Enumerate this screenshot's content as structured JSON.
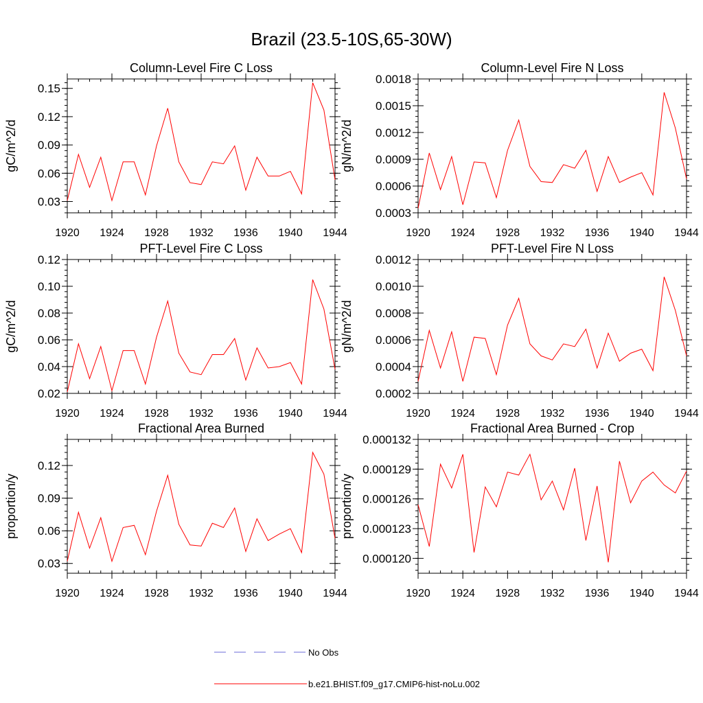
{
  "figure": {
    "title": "Brazil (23.5-10S,65-30W)",
    "legend": [
      {
        "label": "No Obs",
        "color": "#6a6ad8",
        "dash": true
      },
      {
        "label": "b.e21.BHIST.f09_g17.CMIP6-hist-noLu.002",
        "color": "#ff0000",
        "dash": false
      }
    ]
  },
  "chart_data": [
    {
      "type": "line",
      "title": "Column-Level Fire C Loss",
      "ylabel": "gC/m^2/d",
      "xlim": [
        1920,
        1944
      ],
      "ylim": [
        0.018,
        0.16
      ],
      "xticks": [
        1920,
        1924,
        1928,
        1932,
        1936,
        1940,
        1944
      ],
      "xtick_labels": [
        "1920",
        "1924",
        "1928",
        "1932",
        "1936",
        "1940",
        "1944"
      ],
      "yticks": [
        0.03,
        0.06,
        0.09,
        0.12,
        0.15
      ],
      "ytick_labels": [
        "0.03",
        "0.06",
        "0.09",
        "0.12",
        "0.15"
      ],
      "series": [
        {
          "color": "#ff0000",
          "x": [
            1920,
            1921,
            1922,
            1923,
            1924,
            1925,
            1926,
            1927,
            1928,
            1929,
            1930,
            1931,
            1932,
            1933,
            1934,
            1935,
            1936,
            1937,
            1938,
            1939,
            1940,
            1941,
            1942,
            1943,
            1944
          ],
          "values": [
            0.031,
            0.08,
            0.045,
            0.077,
            0.031,
            0.072,
            0.072,
            0.037,
            0.089,
            0.129,
            0.072,
            0.05,
            0.048,
            0.072,
            0.07,
            0.089,
            0.042,
            0.077,
            0.057,
            0.057,
            0.062,
            0.038,
            0.156,
            0.127,
            0.053
          ]
        }
      ]
    },
    {
      "type": "line",
      "title": "Column-Level Fire N Loss",
      "ylabel": "gN/m^2/d",
      "xlim": [
        1920,
        1944
      ],
      "ylim": [
        0.0003,
        0.0018
      ],
      "xticks": [
        1920,
        1924,
        1928,
        1932,
        1936,
        1940,
        1944
      ],
      "xtick_labels": [
        "1920",
        "1924",
        "1928",
        "1932",
        "1936",
        "1940",
        "1944"
      ],
      "yticks": [
        0.0003,
        0.0006,
        0.0009,
        0.0012,
        0.0015,
        0.0018
      ],
      "ytick_labels": [
        "0.0003",
        "0.0006",
        "0.0009",
        "0.0012",
        "0.0015",
        "0.0018"
      ],
      "series": [
        {
          "color": "#ff0000",
          "x": [
            1920,
            1921,
            1922,
            1923,
            1924,
            1925,
            1926,
            1927,
            1928,
            1929,
            1930,
            1931,
            1932,
            1933,
            1934,
            1935,
            1936,
            1937,
            1938,
            1939,
            1940,
            1941,
            1942,
            1943,
            1944
          ],
          "values": [
            0.00035,
            0.00097,
            0.00056,
            0.00093,
            0.00039,
            0.00087,
            0.00086,
            0.00047,
            0.001,
            0.00134,
            0.00082,
            0.00065,
            0.00064,
            0.00084,
            0.0008,
            0.001,
            0.00054,
            0.00093,
            0.00064,
            0.0007,
            0.00075,
            0.0005,
            0.00165,
            0.00125,
            0.00068
          ]
        }
      ]
    },
    {
      "type": "line",
      "title": "PFT-Level Fire C Loss",
      "ylabel": "gC/m^2/d",
      "xlim": [
        1920,
        1944
      ],
      "ylim": [
        0.02,
        0.12
      ],
      "xticks": [
        1920,
        1924,
        1928,
        1932,
        1936,
        1940,
        1944
      ],
      "xtick_labels": [
        "1920",
        "1924",
        "1928",
        "1932",
        "1936",
        "1940",
        "1944"
      ],
      "yticks": [
        0.02,
        0.04,
        0.06,
        0.08,
        0.1,
        0.12
      ],
      "ytick_labels": [
        "0.02",
        "0.04",
        "0.06",
        "0.08",
        "0.10",
        "0.12"
      ],
      "series": [
        {
          "color": "#ff0000",
          "x": [
            1920,
            1921,
            1922,
            1923,
            1924,
            1925,
            1926,
            1927,
            1928,
            1929,
            1930,
            1931,
            1932,
            1933,
            1934,
            1935,
            1936,
            1937,
            1938,
            1939,
            1940,
            1941,
            1942,
            1943,
            1944
          ],
          "values": [
            0.021,
            0.057,
            0.031,
            0.055,
            0.022,
            0.052,
            0.052,
            0.027,
            0.062,
            0.089,
            0.05,
            0.036,
            0.034,
            0.049,
            0.049,
            0.061,
            0.03,
            0.054,
            0.039,
            0.04,
            0.043,
            0.027,
            0.105,
            0.083,
            0.038
          ]
        }
      ]
    },
    {
      "type": "line",
      "title": "PFT-Level Fire N Loss",
      "ylabel": "gN/m^2/d",
      "xlim": [
        1920,
        1944
      ],
      "ylim": [
        0.0002,
        0.0012
      ],
      "xticks": [
        1920,
        1924,
        1928,
        1932,
        1936,
        1940,
        1944
      ],
      "xtick_labels": [
        "1920",
        "1924",
        "1928",
        "1932",
        "1936",
        "1940",
        "1944"
      ],
      "yticks": [
        0.0002,
        0.0004,
        0.0006,
        0.0008,
        0.001,
        0.0012
      ],
      "ytick_labels": [
        "0.0002",
        "0.0004",
        "0.0006",
        "0.0008",
        "0.0010",
        "0.0012"
      ],
      "series": [
        {
          "color": "#ff0000",
          "x": [
            1920,
            1921,
            1922,
            1923,
            1924,
            1925,
            1926,
            1927,
            1928,
            1929,
            1930,
            1931,
            1932,
            1933,
            1934,
            1935,
            1936,
            1937,
            1938,
            1939,
            1940,
            1941,
            1942,
            1943,
            1944
          ],
          "values": [
            0.00029,
            0.00067,
            0.00039,
            0.00066,
            0.00029,
            0.00062,
            0.00061,
            0.00034,
            0.00071,
            0.00091,
            0.00057,
            0.00048,
            0.00045,
            0.00057,
            0.00055,
            0.00068,
            0.00039,
            0.00065,
            0.00044,
            0.0005,
            0.00053,
            0.00037,
            0.00107,
            0.00082,
            0.00048
          ]
        }
      ]
    },
    {
      "type": "line",
      "title": "Fractional Area Burned",
      "ylabel": "proportion/y",
      "xlim": [
        1920,
        1944
      ],
      "ylim": [
        0.021,
        0.144
      ],
      "xticks": [
        1920,
        1924,
        1928,
        1932,
        1936,
        1940,
        1944
      ],
      "xtick_labels": [
        "1920",
        "1924",
        "1928",
        "1932",
        "1936",
        "1940",
        "1944"
      ],
      "yticks": [
        0.03,
        0.06,
        0.09,
        0.12
      ],
      "ytick_labels": [
        "0.03",
        "0.06",
        "0.09",
        "0.12"
      ],
      "series": [
        {
          "color": "#ff0000",
          "x": [
            1920,
            1921,
            1922,
            1923,
            1924,
            1925,
            1926,
            1927,
            1928,
            1929,
            1930,
            1931,
            1932,
            1933,
            1934,
            1935,
            1936,
            1937,
            1938,
            1939,
            1940,
            1941,
            1942,
            1943,
            1944
          ],
          "values": [
            0.032,
            0.077,
            0.044,
            0.072,
            0.032,
            0.063,
            0.065,
            0.038,
            0.078,
            0.111,
            0.066,
            0.047,
            0.046,
            0.067,
            0.063,
            0.081,
            0.041,
            0.071,
            0.051,
            0.057,
            0.062,
            0.04,
            0.132,
            0.112,
            0.053
          ]
        }
      ]
    },
    {
      "type": "line",
      "title": "Fractional Area Burned - Crop",
      "ylabel": "proportion/y",
      "xlim": [
        1920,
        1944
      ],
      "ylim": [
        0.0001185,
        0.000132
      ],
      "xticks": [
        1920,
        1924,
        1928,
        1932,
        1936,
        1940,
        1944
      ],
      "xtick_labels": [
        "1920",
        "1924",
        "1928",
        "1932",
        "1936",
        "1940",
        "1944"
      ],
      "yticks": [
        0.00012,
        0.000123,
        0.000126,
        0.000129,
        0.000132
      ],
      "ytick_labels": [
        "0.000120",
        "0.000123",
        "0.000126",
        "0.000129",
        "0.000132"
      ],
      "series": [
        {
          "color": "#ff0000",
          "x": [
            1920,
            1921,
            1922,
            1923,
            1924,
            1925,
            1926,
            1927,
            1928,
            1929,
            1930,
            1931,
            1932,
            1933,
            1934,
            1935,
            1936,
            1937,
            1938,
            1939,
            1940,
            1941,
            1942,
            1943,
            1944
          ],
          "values": [
            0.0001254,
            0.0001212,
            0.0001295,
            0.0001271,
            0.0001305,
            0.0001206,
            0.0001272,
            0.0001252,
            0.0001287,
            0.0001284,
            0.0001305,
            0.0001259,
            0.0001278,
            0.0001249,
            0.0001291,
            0.0001218,
            0.0001273,
            0.0001196,
            0.0001298,
            0.0001256,
            0.0001278,
            0.0001287,
            0.0001274,
            0.0001266,
            0.0001288
          ]
        }
      ]
    }
  ]
}
